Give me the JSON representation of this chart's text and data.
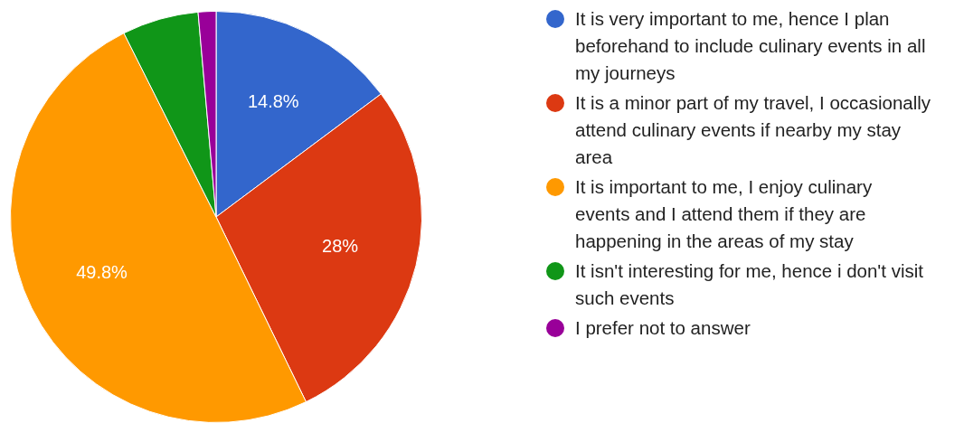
{
  "chart_data": {
    "type": "pie",
    "categories": [
      "It is very important to me, hence I plan beforehand to include culinary events in all my journeys",
      "It is a minor part of my travel, I occasionally attend culinary events if nearby my stay area",
      "It is important to me, I enjoy culinary events and I attend them if they are happening in the areas of my stay",
      "It isn't interesting for me, hence i don't visit such events",
      "I prefer not to answer"
    ],
    "values": [
      14.8,
      28,
      49.8,
      6,
      1.4
    ],
    "colors": [
      "#3366cc",
      "#dc3912",
      "#ff9900",
      "#109618",
      "#990099"
    ],
    "value_labels": [
      "14.8%",
      "28%",
      "49.8%",
      null,
      null
    ],
    "legend": "right"
  }
}
